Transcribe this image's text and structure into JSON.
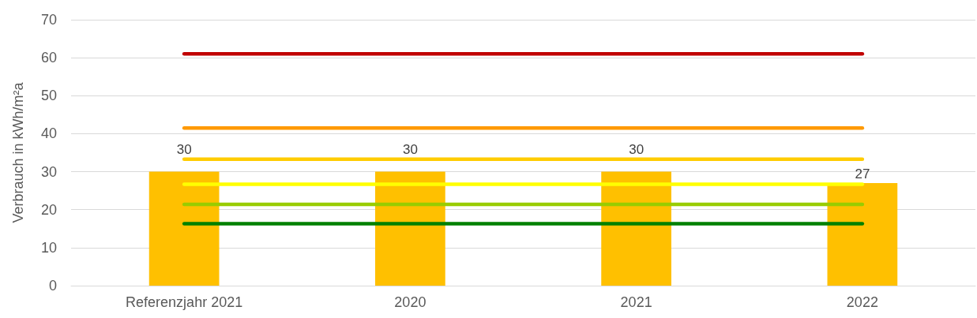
{
  "chart_data": {
    "type": "bar",
    "ylabel": "Verbrauch in kWh/m²a",
    "categories": [
      "Referenzjahr 2021",
      "2020",
      "2021",
      "2022"
    ],
    "series": [
      {
        "color": "#ffc000",
        "values": [
          30,
          30,
          30,
          27
        ],
        "value_labels": [
          "30",
          "30",
          "30",
          "27"
        ]
      },
      {
        "type": "line",
        "color": "#c00000",
        "values": [
          61,
          61,
          61,
          61
        ]
      },
      {
        "type": "line",
        "color": "#ff9900",
        "values": [
          41.5,
          41.5,
          41.5,
          41.5
        ]
      },
      {
        "type": "line",
        "color": "#ffcc00",
        "values": [
          33.3,
          33.3,
          33.3,
          33.3
        ]
      },
      {
        "type": "line",
        "color": "#ffff00",
        "values": [
          26.7,
          26.7,
          26.7,
          26.7
        ]
      },
      {
        "type": "line",
        "color": "#99cc00",
        "values": [
          21.4,
          21.4,
          21.4,
          21.4
        ]
      },
      {
        "type": "line",
        "color": "#008000",
        "values": [
          16.3,
          16.3,
          16.3,
          16.3
        ]
      }
    ],
    "ylim": [
      0,
      70
    ],
    "yticks": [
      0,
      10,
      20,
      30,
      40,
      50,
      60,
      70
    ],
    "grid": "y",
    "marker": "none",
    "line_style": "solid"
  }
}
